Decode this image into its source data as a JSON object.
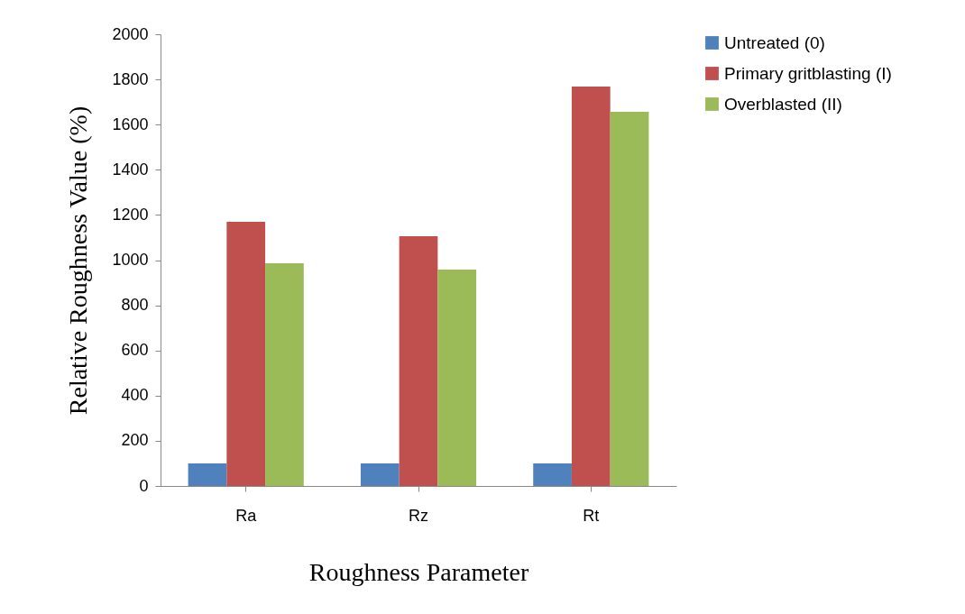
{
  "chart_data": {
    "type": "bar",
    "xlabel": "Roughness Parameter",
    "ylabel": "Relative Roughness Value (%)",
    "categories": [
      "Ra",
      "Rz",
      "Rt"
    ],
    "series": [
      {
        "name": "Untreated (0)",
        "color": "#4f81bd",
        "values": [
          100,
          100,
          100
        ]
      },
      {
        "name": "Primary gritblasting (I)",
        "color": "#c0504d",
        "values": [
          1170,
          1106,
          1768
        ]
      },
      {
        "name": "Overblasted (II)",
        "color": "#9bbb59",
        "values": [
          986,
          958,
          1657
        ]
      }
    ],
    "ylim": [
      0,
      2000
    ],
    "yticks": [
      0,
      200,
      400,
      600,
      800,
      1000,
      1200,
      1400,
      1600,
      1800,
      2000
    ],
    "grid": false,
    "legend": "right"
  }
}
